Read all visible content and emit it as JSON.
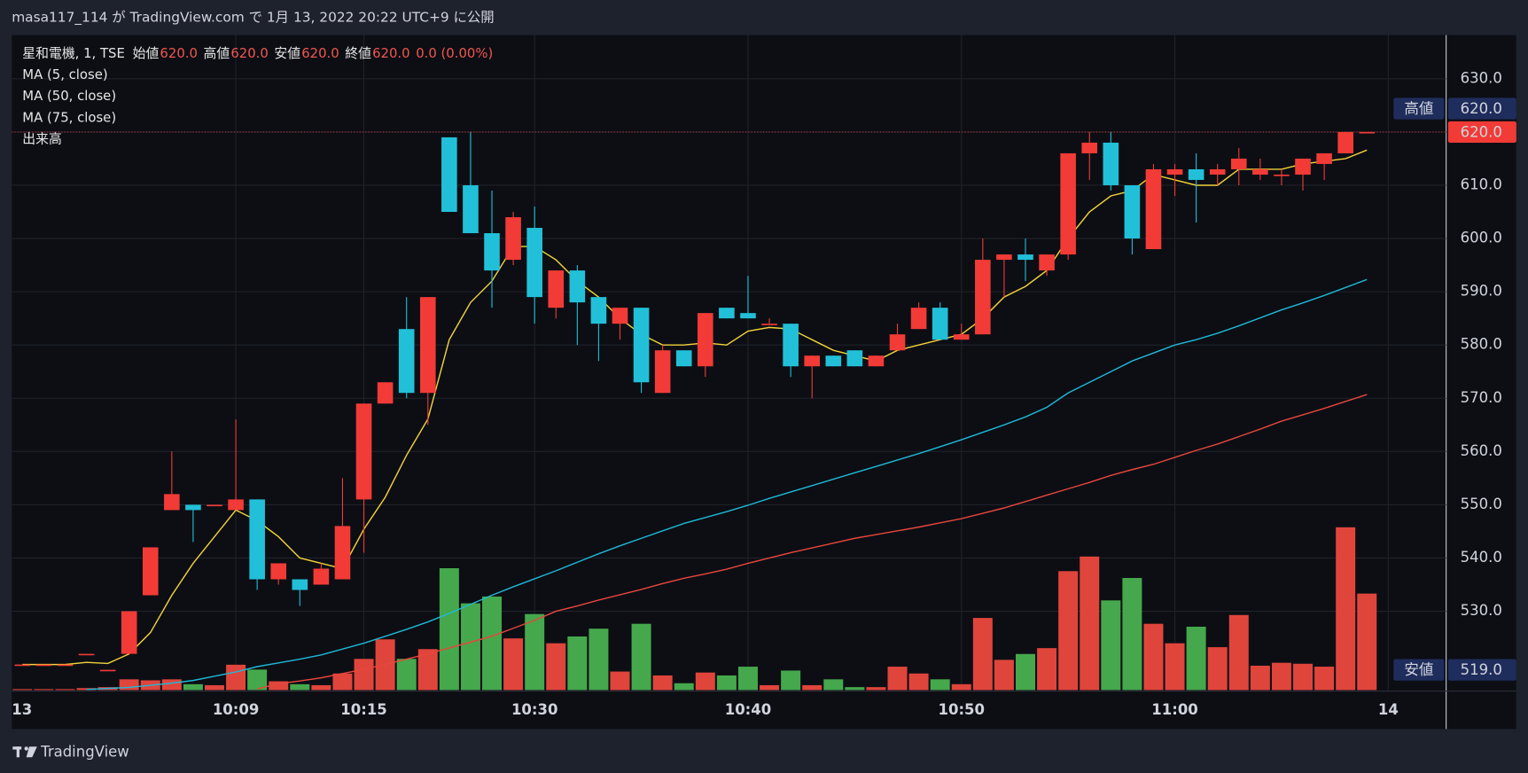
{
  "header": "masa117_114 が TradingView.com で 1月 13, 2022 20:22 UTC+9 に公開",
  "brand": "TradingView",
  "chart_data": {
    "type": "candlestick",
    "legend": {
      "symbol": "星和電機, 1, TSE",
      "items": [
        {
          "label": "始値",
          "value": "620.0"
        },
        {
          "label": "高値",
          "value": "620.0"
        },
        {
          "label": "安値",
          "value": "620.0"
        },
        {
          "label": "終値",
          "value": "620.0"
        }
      ],
      "change": "0.0 (0.00%)"
    },
    "categories": [
      "13",
      null,
      null,
      null,
      null,
      null,
      null,
      null,
      null,
      null,
      "10:09",
      null,
      null,
      null,
      null,
      null,
      "10:15",
      null,
      null,
      null,
      null,
      null,
      null,
      null,
      "10:30",
      null,
      null,
      null,
      null,
      null,
      null,
      null,
      null,
      null,
      "10:40",
      null,
      null,
      null,
      null,
      null,
      null,
      null,
      null,
      null,
      "10:50",
      null,
      null,
      null,
      null,
      null,
      null,
      null,
      null,
      null,
      "11:00",
      null,
      null,
      null,
      null,
      null,
      null,
      null,
      null,
      null,
      "14"
    ],
    "open": [
      520,
      520,
      520,
      522,
      519,
      522,
      533,
      549,
      550,
      550,
      549,
      551,
      536,
      536,
      535,
      536,
      551,
      569,
      583,
      571,
      619,
      610,
      601,
      596,
      602,
      587,
      594,
      589,
      584,
      587,
      571,
      579,
      576,
      587,
      586,
      584,
      584,
      576,
      578,
      579,
      576,
      579,
      583,
      587,
      581,
      582,
      596,
      597,
      594,
      597,
      616,
      618,
      610,
      598,
      612,
      613,
      612,
      613,
      612,
      612,
      612,
      614,
      616,
      620,
      null
    ],
    "high": [
      520,
      520,
      520,
      522,
      519,
      530,
      542,
      560,
      550,
      550,
      566,
      551,
      539,
      536,
      539,
      555,
      569,
      573,
      589,
      589,
      619,
      620,
      609,
      605,
      606,
      594,
      595,
      589,
      587,
      587,
      580,
      579,
      586,
      587,
      593,
      585,
      584,
      578,
      578,
      579,
      578,
      584,
      588,
      588,
      584,
      600,
      597,
      600,
      597,
      616,
      620,
      620,
      610,
      614,
      614,
      616,
      614,
      617,
      615,
      613,
      615,
      616,
      620,
      620,
      null
    ],
    "low": [
      520,
      520,
      520,
      522,
      519,
      522,
      533,
      549,
      543,
      550,
      549,
      534,
      535,
      531,
      535,
      536,
      541,
      569,
      570,
      565,
      605,
      601,
      587,
      595,
      584,
      585,
      580,
      577,
      581,
      571,
      571,
      576,
      574,
      585,
      585,
      584,
      574,
      570,
      576,
      576,
      576,
      579,
      583,
      581,
      581,
      582,
      589,
      592,
      593,
      596,
      611,
      609,
      597,
      598,
      608,
      603,
      610,
      610,
      611,
      610,
      609,
      611,
      616,
      620,
      null
    ],
    "close": [
      520,
      520,
      520,
      522,
      519,
      530,
      542,
      552,
      549,
      550,
      551,
      536,
      539,
      534,
      538,
      546,
      569,
      573,
      571,
      589,
      605,
      601,
      594,
      604,
      589,
      594,
      588,
      584,
      587,
      573,
      579,
      576,
      586,
      585,
      585,
      584,
      576,
      578,
      576,
      576,
      578,
      582,
      587,
      581,
      582,
      596,
      597,
      596,
      597,
      616,
      618,
      610,
      600,
      613,
      613,
      611,
      613,
      615,
      613,
      612,
      615,
      616,
      620,
      620,
      null
    ],
    "up_color": "#f23b36",
    "down_color": "#22c0d8",
    "volume": {
      "name": "出来高",
      "up_color": "#e0453c",
      "down_color": "#46a84c",
      "vlim": [
        0,
        672
      ],
      "values": [
        1,
        1,
        1,
        2,
        3,
        11,
        10,
        11,
        6,
        5,
        26,
        21,
        9,
        6,
        5,
        17,
        32,
        52,
        32,
        42,
        125,
        89,
        96,
        53,
        78,
        48,
        55,
        63,
        19,
        68,
        15,
        7,
        18,
        15,
        24,
        5,
        20,
        5,
        11,
        3,
        3,
        24,
        17,
        11,
        6,
        74,
        31,
        37,
        43,
        122,
        137,
        92,
        115,
        68,
        48,
        65,
        44,
        77,
        25,
        28,
        27,
        24,
        167,
        99,
        null
      ]
    },
    "series": [
      {
        "name": "MA (5, close)",
        "color": "#f2d23a",
        "values": [
          520,
          520,
          520,
          520.4,
          520.2,
          522,
          526,
          533,
          539,
          544,
          549,
          547,
          544,
          540,
          539,
          538,
          545.4,
          551.4,
          559.3,
          566.1,
          581,
          588,
          592,
          598.5,
          598.5,
          596,
          592,
          589,
          585,
          582,
          580,
          580,
          580.4,
          580,
          582.6,
          583.3,
          583,
          581,
          579,
          578,
          577,
          579,
          580,
          581,
          582,
          585,
          589,
          591,
          594,
          600,
          605,
          608,
          609,
          612,
          611,
          610,
          610,
          613,
          613,
          613,
          614,
          614.5,
          615,
          616.6,
          null
        ]
      },
      {
        "name": "MA (50, close)",
        "color": "#1fb8d6",
        "values": [
          null,
          null,
          null,
          515.3,
          515.5,
          515.7,
          516.1,
          516.5,
          517,
          517.8,
          518.6,
          519.6,
          520.3,
          521,
          521.8,
          522.9,
          524,
          525.3,
          526.6,
          528,
          529.6,
          531.3,
          533,
          534.6,
          536.1,
          537.6,
          539.2,
          540.8,
          542.3,
          543.7,
          545.1,
          546.5,
          547.6,
          548.7,
          549.9,
          551.2,
          552.4,
          553.6,
          554.8,
          556,
          557.2,
          558.4,
          559.6,
          560.9,
          562.2,
          563.6,
          565,
          566.5,
          568.3,
          571,
          573,
          575,
          577,
          578.5,
          580,
          581,
          582.2,
          583.6,
          585.1,
          586.6,
          587.9,
          589.3,
          590.8,
          592.3,
          null
        ]
      },
      {
        "name": "MA (75, close)",
        "color": "#e8463c",
        "values": [
          null,
          null,
          null,
          null,
          null,
          null,
          null,
          null,
          null,
          null,
          null,
          515.4,
          516.4,
          516.9,
          517.5,
          518.3,
          519.1,
          520,
          521,
          522,
          523.1,
          524.2,
          525.3,
          526.8,
          528.3,
          530,
          531,
          532.1,
          533.1,
          534.1,
          535.2,
          536.2,
          537,
          537.9,
          539,
          540,
          541,
          541.9,
          542.8,
          543.7,
          544.4,
          545.1,
          545.8,
          546.6,
          547.4,
          548.4,
          549.4,
          550.6,
          551.8,
          553,
          554.2,
          555.5,
          556.6,
          557.6,
          558.9,
          560.2,
          561.4,
          562.8,
          564.2,
          565.7,
          566.9,
          568.1,
          569.4,
          570.7,
          null
        ]
      }
    ],
    "ylim": [
      515.2,
      638.2
    ],
    "yticks": [
      {
        "value": 530,
        "label": "530.0"
      },
      {
        "value": 540,
        "label": "540.0"
      },
      {
        "value": 550,
        "label": "550.0"
      },
      {
        "value": 560,
        "label": "560.0"
      },
      {
        "value": 570,
        "label": "570.0"
      },
      {
        "value": 580,
        "label": "580.0"
      },
      {
        "value": 590,
        "label": "590.0"
      },
      {
        "value": 600,
        "label": "600.0"
      },
      {
        "value": 610,
        "label": "610.0"
      },
      {
        "value": 620,
        "label": "620.0"
      },
      {
        "value": 630,
        "label": "630.0"
      }
    ],
    "grid": true,
    "high_marker": {
      "label": "高値",
      "value": 620,
      "value_label": "620.0"
    },
    "low_marker": {
      "label": "安値",
      "value": 519,
      "value_label": "519.0"
    },
    "last_price": {
      "value": 620,
      "value_label": "620.0",
      "color": "#f23b36"
    }
  }
}
